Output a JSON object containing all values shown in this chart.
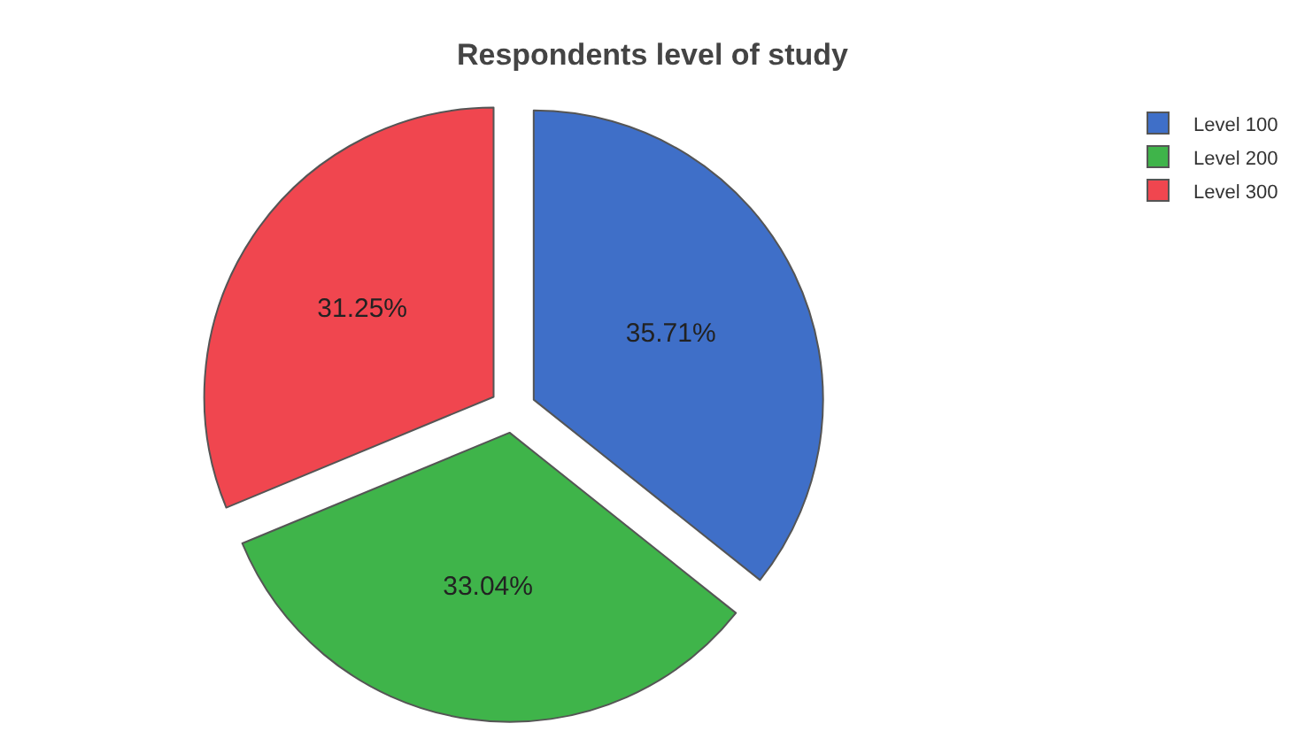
{
  "chart_data": {
    "type": "pie",
    "title": "Respondents level of study",
    "categories": [
      "Level 100",
      "Level 200",
      "Level 300"
    ],
    "values": [
      35.71,
      33.04,
      31.25
    ],
    "colors": [
      "#3f6fc8",
      "#3fb44a",
      "#f0464f"
    ],
    "value_labels": [
      "35.71%",
      "33.04%",
      "31.25%"
    ],
    "legend": "top right"
  }
}
